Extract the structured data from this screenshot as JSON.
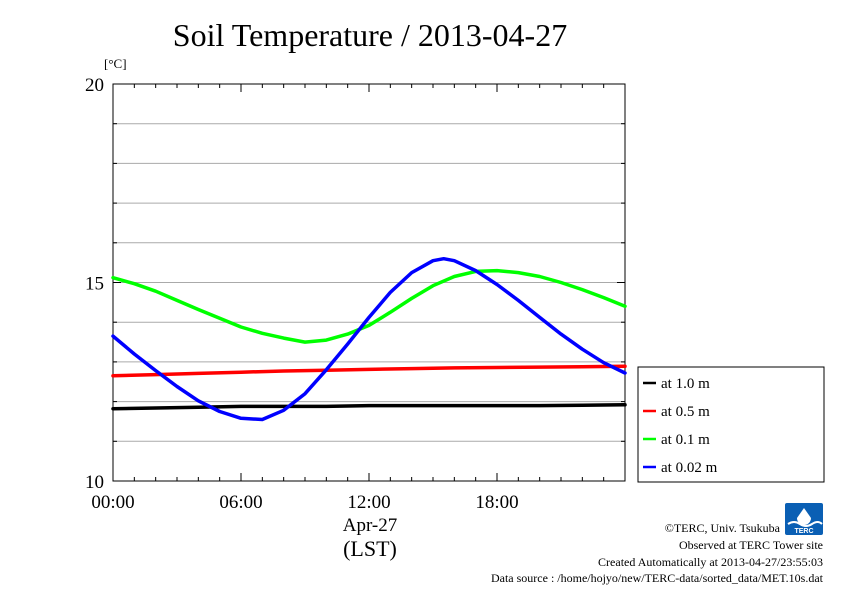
{
  "chart_data": {
    "type": "line",
    "title": "Soil Temperature / 2013-04-27",
    "ylabel": "[°C]",
    "xlabel_date": "Apr-27",
    "xlabel_zone": "(LST)",
    "ylim": [
      10,
      20
    ],
    "xlim": [
      0,
      24
    ],
    "x_unit": "hours",
    "y_ticks": [
      "10",
      "15",
      "20"
    ],
    "x_ticks": [
      {
        "hour": 0,
        "label": "00:00"
      },
      {
        "hour": 6,
        "label": "06:00"
      },
      {
        "hour": 12,
        "label": "12:00"
      },
      {
        "hour": 18,
        "label": "18:00"
      }
    ],
    "grid": true,
    "legend_position": "right",
    "series": [
      {
        "name": "at 1.0 m",
        "color": "#000000",
        "x": [
          0,
          2,
          4,
          6,
          8,
          10,
          12,
          14,
          16,
          18,
          20,
          22,
          24
        ],
        "y": [
          11.82,
          11.84,
          11.86,
          11.88,
          11.88,
          11.88,
          11.9,
          11.9,
          11.9,
          11.9,
          11.9,
          11.91,
          11.92
        ]
      },
      {
        "name": "at 0.5 m",
        "color": "#ff0000",
        "x": [
          0,
          2,
          4,
          6,
          8,
          10,
          12,
          14,
          16,
          18,
          20,
          22,
          24
        ],
        "y": [
          12.65,
          12.68,
          12.71,
          12.74,
          12.77,
          12.79,
          12.81,
          12.83,
          12.85,
          12.86,
          12.87,
          12.88,
          12.89
        ]
      },
      {
        "name": "at 0.1 m",
        "color": "#00ff00",
        "x": [
          0,
          1,
          2,
          3,
          4,
          5,
          6,
          7,
          8,
          9,
          10,
          11,
          12,
          13,
          14,
          15,
          16,
          17,
          18,
          19,
          20,
          21,
          22,
          23,
          24
        ],
        "y": [
          15.12,
          14.97,
          14.78,
          14.55,
          14.32,
          14.1,
          13.88,
          13.72,
          13.6,
          13.5,
          13.55,
          13.7,
          13.92,
          14.25,
          14.6,
          14.92,
          15.15,
          15.28,
          15.3,
          15.25,
          15.15,
          15.0,
          14.82,
          14.62,
          14.4
        ]
      },
      {
        "name": "at 0.02 m",
        "color": "#0000ff",
        "x": [
          0,
          1,
          2,
          3,
          4,
          5,
          6,
          7,
          8,
          9,
          10,
          11,
          12,
          13,
          14,
          15,
          15.5,
          16,
          17,
          18,
          19,
          20,
          21,
          22,
          23,
          24
        ],
        "y": [
          13.65,
          13.2,
          12.78,
          12.38,
          12.02,
          11.75,
          11.58,
          11.55,
          11.78,
          12.2,
          12.8,
          13.45,
          14.12,
          14.75,
          15.25,
          15.55,
          15.6,
          15.55,
          15.3,
          14.95,
          14.55,
          14.12,
          13.7,
          13.32,
          12.98,
          12.72
        ]
      }
    ]
  },
  "footer": {
    "credit": "©TERC, Univ. Tsukuba",
    "observed": "Observed at TERC Tower site",
    "created": "Created Automatically at 2013-04-27/23:55:03",
    "source": "Data source : /home/hojyo/new/TERC-data/sorted_data/MET.10s.dat",
    "logo_text": "TERC"
  }
}
